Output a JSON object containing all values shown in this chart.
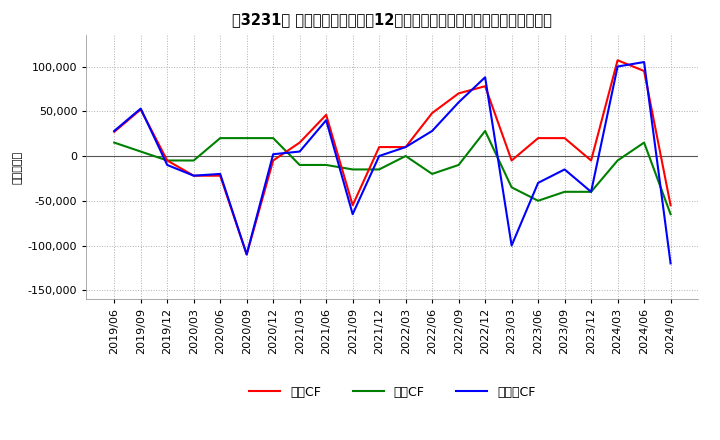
{
  "title": "［3231］ キャッシュフローの12か月移動合計の対前年同期増減額の推移",
  "ylabel": "（百万円）",
  "ylim": [
    -160000,
    135000
  ],
  "yticks": [
    -150000,
    -100000,
    -50000,
    0,
    50000,
    100000
  ],
  "dates": [
    "2019/06",
    "2019/09",
    "2019/12",
    "2020/03",
    "2020/06",
    "2020/09",
    "2020/12",
    "2021/03",
    "2021/06",
    "2021/09",
    "2021/12",
    "2022/03",
    "2022/06",
    "2022/09",
    "2022/12",
    "2023/03",
    "2023/06",
    "2023/09",
    "2023/12",
    "2024/03",
    "2024/06",
    "2024/09"
  ],
  "operating_cf": [
    27000,
    52000,
    -5000,
    -22000,
    -22000,
    -110000,
    -5000,
    15000,
    46000,
    -55000,
    10000,
    10000,
    48000,
    70000,
    78000,
    -5000,
    20000,
    20000,
    -5000,
    107000,
    95000,
    -55000
  ],
  "investing_cf": [
    15000,
    5000,
    -5000,
    -5000,
    20000,
    20000,
    20000,
    -10000,
    -10000,
    -15000,
    -15000,
    0,
    -20000,
    -10000,
    28000,
    -35000,
    -50000,
    -40000,
    -40000,
    -5000,
    15000,
    -65000
  ],
  "free_cf": [
    28000,
    53000,
    -10000,
    -22000,
    -20000,
    -110000,
    2000,
    5000,
    40000,
    -65000,
    0,
    10000,
    28000,
    60000,
    88000,
    -100000,
    -30000,
    -15000,
    -40000,
    100000,
    105000,
    -120000
  ],
  "operating_color": "#ff0000",
  "investing_color": "#008000",
  "free_color": "#0000ff",
  "background_color": "#ffffff",
  "grid_color": "#b0b0b0",
  "line_width": 1.5
}
